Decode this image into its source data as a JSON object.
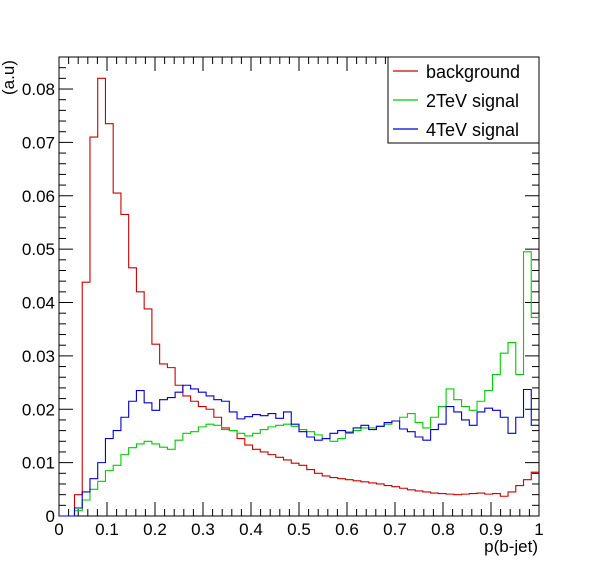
{
  "chart_data": {
    "type": "line",
    "xlabel": "p(b-jet)",
    "ylabel": "(a.u)",
    "xlim": [
      0,
      1
    ],
    "ylim": [
      0,
      0.086
    ],
    "x_ticks": [
      0,
      0.1,
      0.2,
      0.3,
      0.4,
      0.5,
      0.6,
      0.7,
      0.8,
      0.9,
      1
    ],
    "x_tick_labels": [
      "0",
      "0.1",
      "0.2",
      "0.3",
      "0.4",
      "0.5",
      "0.6",
      "0.7",
      "0.8",
      "0.9",
      "1"
    ],
    "y_ticks": [
      0,
      0.01,
      0.02,
      0.03,
      0.04,
      0.05,
      0.06,
      0.07,
      0.08
    ],
    "y_tick_labels": [
      "0",
      "0.01",
      "0.02",
      "0.03",
      "0.04",
      "0.05",
      "0.06",
      "0.07",
      "0.08"
    ],
    "legend_position": "top-right",
    "bin_width": 0.0166667,
    "series": [
      {
        "name": "background",
        "color": "#cc0000",
        "values": [
          0,
          0,
          0.004,
          0.0438,
          0.071,
          0.082,
          0.0735,
          0.0605,
          0.0565,
          0.0465,
          0.042,
          0.0388,
          0.0322,
          0.0285,
          0.0278,
          0.0245,
          0.0225,
          0.0215,
          0.0205,
          0.02,
          0.0185,
          0.0165,
          0.016,
          0.0145,
          0.0133,
          0.0125,
          0.012,
          0.0115,
          0.011,
          0.0105,
          0.0099,
          0.0095,
          0.0087,
          0.008,
          0.0075,
          0.0072,
          0.007,
          0.0068,
          0.0066,
          0.0064,
          0.0062,
          0.006,
          0.0057,
          0.0055,
          0.0052,
          0.0049,
          0.0047,
          0.0045,
          0.0043,
          0.0042,
          0.0041,
          0.004,
          0.0041,
          0.0042,
          0.0043,
          0.0041,
          0.0042,
          0.0037,
          0.0045,
          0.0057,
          0.0068,
          0.0082
        ]
      },
      {
        "name": "2TeV signal",
        "color": "#00cc00",
        "values": [
          0,
          0,
          0.001,
          0.003,
          0.005,
          0.0065,
          0.0085,
          0.0095,
          0.0115,
          0.0128,
          0.0135,
          0.014,
          0.0135,
          0.0129,
          0.0125,
          0.0142,
          0.0155,
          0.0158,
          0.0167,
          0.0172,
          0.017,
          0.0162,
          0.016,
          0.0155,
          0.015,
          0.0155,
          0.0162,
          0.0167,
          0.017,
          0.0172,
          0.0168,
          0.0162,
          0.0158,
          0.0152,
          0.0145,
          0.014,
          0.0145,
          0.0155,
          0.016,
          0.0165,
          0.0165,
          0.0168,
          0.0172,
          0.0178,
          0.0185,
          0.0192,
          0.0175,
          0.0165,
          0.0185,
          0.0205,
          0.0238,
          0.0218,
          0.0205,
          0.0198,
          0.0215,
          0.0235,
          0.0265,
          0.0305,
          0.0325,
          0.0265,
          0.0495,
          0.0372
        ]
      },
      {
        "name": "4TeV signal",
        "color": "#0000cc",
        "values": [
          0,
          0,
          0.0015,
          0.0045,
          0.007,
          0.01,
          0.0145,
          0.016,
          0.0185,
          0.0215,
          0.0235,
          0.0212,
          0.0198,
          0.0218,
          0.0222,
          0.0232,
          0.0245,
          0.0238,
          0.0232,
          0.0225,
          0.0218,
          0.0215,
          0.0195,
          0.0182,
          0.0186,
          0.019,
          0.0188,
          0.0192,
          0.0183,
          0.0195,
          0.0172,
          0.0158,
          0.0148,
          0.0142,
          0.0145,
          0.0155,
          0.016,
          0.0157,
          0.0165,
          0.017,
          0.0162,
          0.0168,
          0.0175,
          0.0178,
          0.0163,
          0.0158,
          0.0148,
          0.0142,
          0.0162,
          0.0172,
          0.0205,
          0.0195,
          0.018,
          0.017,
          0.0195,
          0.0202,
          0.0198,
          0.0185,
          0.0155,
          0.0185,
          0.0237,
          0.017
        ]
      }
    ]
  }
}
